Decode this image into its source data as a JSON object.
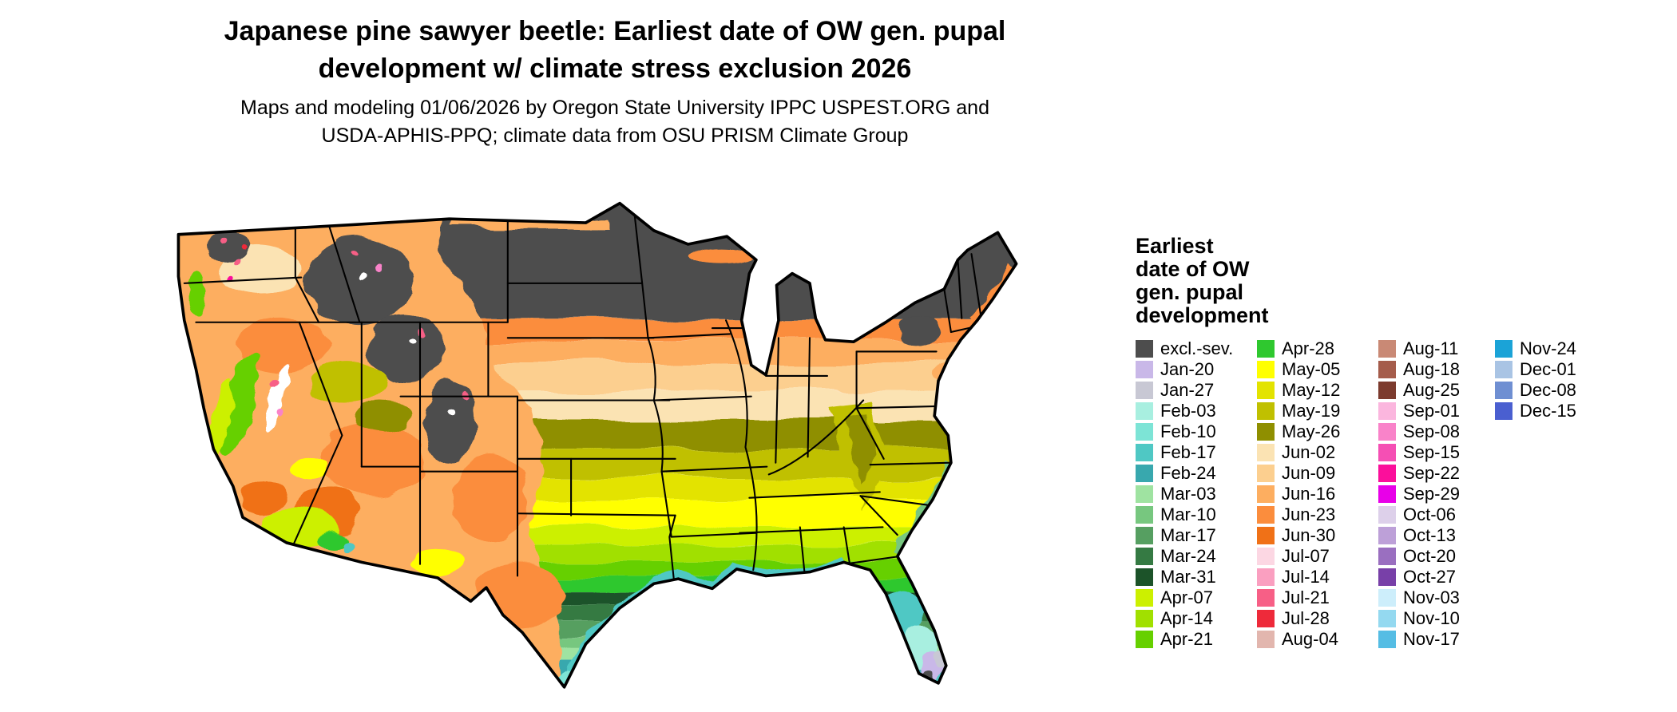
{
  "title": {
    "line1": "Japanese pine sawyer beetle: Earliest date of OW gen. pupal",
    "line2": "development w/ climate stress exclusion 2026"
  },
  "subtitle": {
    "line1": "Maps and modeling 01/06/2026 by Oregon State University IPPC USPEST.ORG and",
    "line2": "USDA-APHIS-PPQ; climate data from OSU PRISM Climate Group"
  },
  "map": {
    "region": "Continental United States",
    "background_color": "#ffffff",
    "outline_color": "#000000",
    "no_data_color": "#ffffff"
  },
  "legend": {
    "title_lines": [
      "Earliest",
      "date of OW",
      "gen. pupal",
      "development"
    ],
    "columns": [
      [
        {
          "label": "excl.-sev.",
          "color": "#4d4d4d"
        },
        {
          "label": "Jan-20",
          "color": "#c9b8e8"
        },
        {
          "label": "Jan-27",
          "color": "#c8c8d4"
        },
        {
          "label": "Feb-03",
          "color": "#a8efe0"
        },
        {
          "label": "Feb-10",
          "color": "#7de4d6"
        },
        {
          "label": "Feb-17",
          "color": "#4fc8c4"
        },
        {
          "label": "Feb-24",
          "color": "#38a8ae"
        },
        {
          "label": "Mar-03",
          "color": "#9fe3a1"
        },
        {
          "label": "Mar-10",
          "color": "#77c77f"
        },
        {
          "label": "Mar-17",
          "color": "#569f61"
        },
        {
          "label": "Mar-24",
          "color": "#357a43"
        },
        {
          "label": "Mar-31",
          "color": "#1c5329"
        },
        {
          "label": "Apr-07",
          "color": "#ccf000"
        },
        {
          "label": "Apr-14",
          "color": "#a1e000"
        },
        {
          "label": "Apr-21",
          "color": "#66d000"
        }
      ],
      [
        {
          "label": "Apr-28",
          "color": "#2fc82f"
        },
        {
          "label": "May-05",
          "color": "#ffff00"
        },
        {
          "label": "May-12",
          "color": "#e3e300"
        },
        {
          "label": "May-19",
          "color": "#c0c000"
        },
        {
          "label": "May-26",
          "color": "#8f8f00"
        },
        {
          "label": "Jun-02",
          "color": "#fbe3b3"
        },
        {
          "label": "Jun-09",
          "color": "#fccf8f"
        },
        {
          "label": "Jun-16",
          "color": "#fdae60"
        },
        {
          "label": "Jun-23",
          "color": "#fb8d3d"
        },
        {
          "label": "Jun-30",
          "color": "#f07117"
        },
        {
          "label": "Jul-07",
          "color": "#fcd7e3"
        },
        {
          "label": "Jul-14",
          "color": "#fa9fc0"
        },
        {
          "label": "Jul-21",
          "color": "#f75f86"
        },
        {
          "label": "Jul-28",
          "color": "#ee2a3a"
        },
        {
          "label": "Aug-04",
          "color": "#e2b6ae"
        }
      ],
      [
        {
          "label": "Aug-11",
          "color": "#c98975"
        },
        {
          "label": "Aug-18",
          "color": "#a55c4b"
        },
        {
          "label": "Aug-25",
          "color": "#7c3b2e"
        },
        {
          "label": "Sep-01",
          "color": "#fbb6de"
        },
        {
          "label": "Sep-08",
          "color": "#f983c9"
        },
        {
          "label": "Sep-15",
          "color": "#f54fb4"
        },
        {
          "label": "Sep-22",
          "color": "#fb0f9b"
        },
        {
          "label": "Sep-29",
          "color": "#e800e8"
        },
        {
          "label": "Oct-06",
          "color": "#ddd0ea"
        },
        {
          "label": "Oct-13",
          "color": "#bda0d8"
        },
        {
          "label": "Oct-20",
          "color": "#9a6fc0"
        },
        {
          "label": "Oct-27",
          "color": "#7840a8"
        },
        {
          "label": "Nov-03",
          "color": "#cdeefb"
        },
        {
          "label": "Nov-10",
          "color": "#94d9f0"
        },
        {
          "label": "Nov-17",
          "color": "#55bde4"
        }
      ],
      [
        {
          "label": "Nov-24",
          "color": "#1ba3d7"
        },
        {
          "label": "Dec-01",
          "color": "#a9c4e4"
        },
        {
          "label": "Dec-08",
          "color": "#6f8fd2"
        },
        {
          "label": "Dec-15",
          "color": "#4a5fd0"
        }
      ]
    ]
  }
}
